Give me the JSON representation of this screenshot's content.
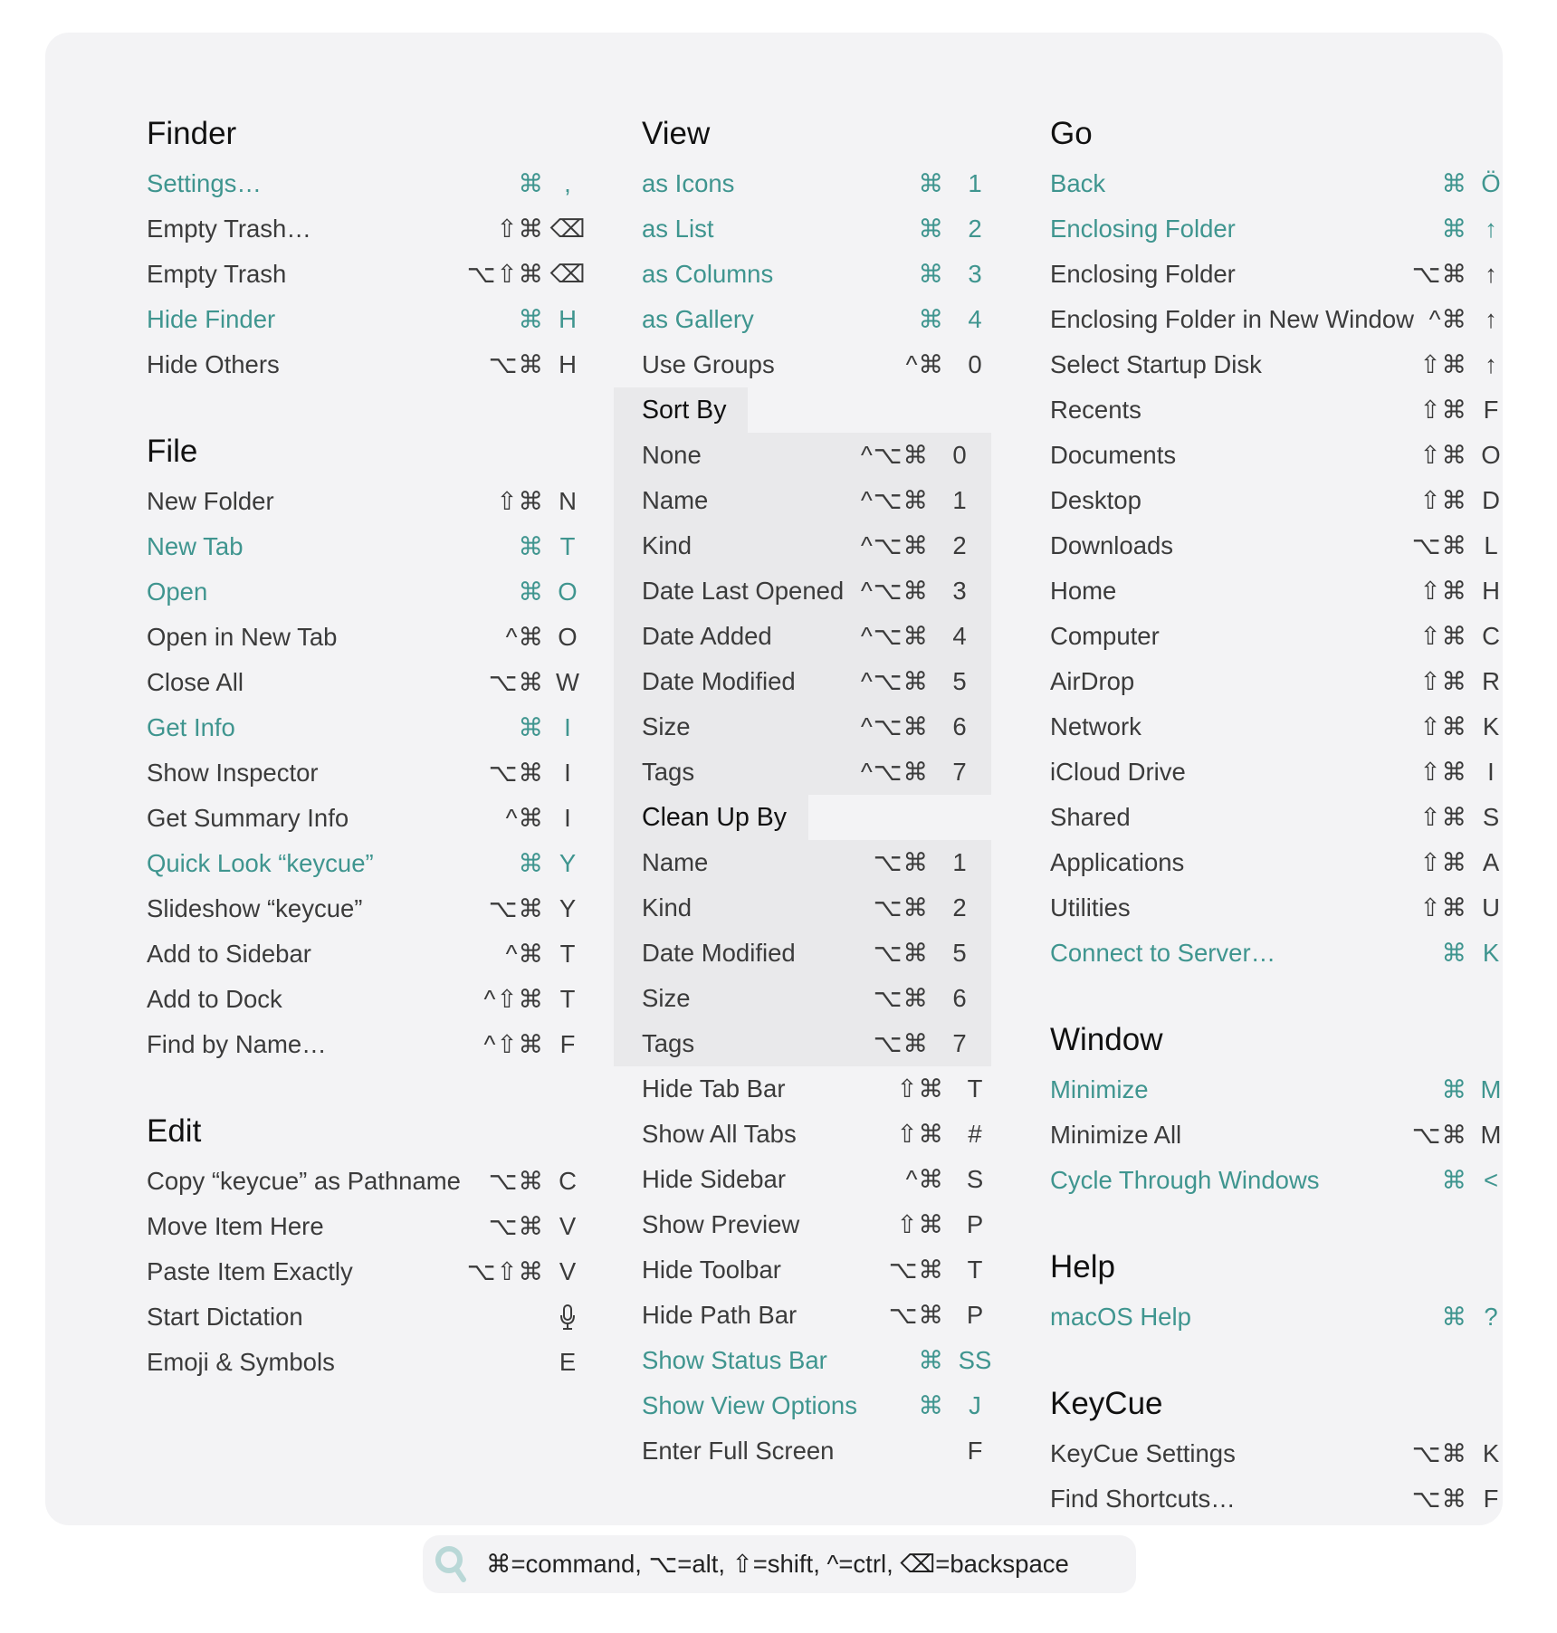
{
  "colors": {
    "accent": "#3f958f",
    "panel": "#f3f3f5",
    "group_bg": "#e9e9eb",
    "search_icon": "#b9d8d7"
  },
  "columns": [
    {
      "sections": [
        {
          "title": "Finder",
          "rows": [
            {
              "label": "Settings…",
              "mods": "⌘",
              "key": ",",
              "teal": true
            },
            {
              "label": "Empty Trash…",
              "mods": "⇧⌘",
              "key": "⌫"
            },
            {
              "label": "Empty Trash",
              "mods": "⌥⇧⌘",
              "key": "⌫"
            },
            {
              "label": "Hide Finder",
              "mods": "⌘",
              "key": "H",
              "teal": true
            },
            {
              "label": "Hide Others",
              "mods": "⌥⌘",
              "key": "H"
            }
          ]
        },
        {
          "title": "File",
          "rows": [
            {
              "label": "New Folder",
              "mods": "⇧⌘",
              "key": "N"
            },
            {
              "label": "New Tab",
              "mods": "⌘",
              "key": "T",
              "teal": true
            },
            {
              "label": "Open",
              "mods": "⌘",
              "key": "O",
              "teal": true
            },
            {
              "label": "Open in New Tab",
              "mods": "^⌘",
              "key": "O"
            },
            {
              "label": "Close All",
              "mods": "⌥⌘",
              "key": "W"
            },
            {
              "label": "Get Info",
              "mods": "⌘",
              "key": "I",
              "teal": true
            },
            {
              "label": "Show Inspector",
              "mods": "⌥⌘",
              "key": "I"
            },
            {
              "label": "Get Summary Info",
              "mods": "^⌘",
              "key": "I"
            },
            {
              "label": "Quick Look “keycue”",
              "mods": "⌘",
              "key": "Y",
              "teal": true
            },
            {
              "label": "Slideshow “keycue”",
              "mods": "⌥⌘",
              "key": "Y"
            },
            {
              "label": "Add to Sidebar",
              "mods": "^⌘",
              "key": "T"
            },
            {
              "label": "Add to Dock",
              "mods": "^⇧⌘",
              "key": "T"
            },
            {
              "label": "Find by Name…",
              "mods": "^⇧⌘",
              "key": "F"
            }
          ]
        },
        {
          "title": "Edit",
          "rows": [
            {
              "label": "Copy “keycue” as Pathname",
              "mods": "⌥⌘",
              "key": "C"
            },
            {
              "label": "Move Item Here",
              "mods": "⌥⌘",
              "key": "V"
            },
            {
              "label": "Paste Item Exactly",
              "mods": "⌥⇧⌘",
              "key": "V"
            },
            {
              "label": "Start Dictation",
              "mods": "",
              "key": "",
              "icon": "microphone-icon"
            },
            {
              "label": "Emoji & Symbols",
              "mods": "",
              "key": "E"
            }
          ]
        }
      ]
    },
    {
      "sections": [
        {
          "title": "View",
          "rows": [
            {
              "label": "as Icons",
              "mods": "⌘",
              "key": "1",
              "teal": true
            },
            {
              "label": "as List",
              "mods": "⌘",
              "key": "2",
              "teal": true
            },
            {
              "label": "as Columns",
              "mods": "⌘",
              "key": "3",
              "teal": true
            },
            {
              "label": "as Gallery",
              "mods": "⌘",
              "key": "4",
              "teal": true
            },
            {
              "label": "Use Groups",
              "mods": "^⌘",
              "key": "0"
            },
            {
              "label": "Sort By",
              "sub": true
            },
            {
              "label": "None",
              "mods": "^⌥⌘",
              "key": "0",
              "grp": true
            },
            {
              "label": "Name",
              "mods": "^⌥⌘",
              "key": "1",
              "grp": true
            },
            {
              "label": "Kind",
              "mods": "^⌥⌘",
              "key": "2",
              "grp": true
            },
            {
              "label": "Date Last Opened",
              "mods": "^⌥⌘",
              "key": "3",
              "grp": true
            },
            {
              "label": "Date Added",
              "mods": "^⌥⌘",
              "key": "4",
              "grp": true
            },
            {
              "label": "Date Modified",
              "mods": "^⌥⌘",
              "key": "5",
              "grp": true
            },
            {
              "label": "Size",
              "mods": "^⌥⌘",
              "key": "6",
              "grp": true
            },
            {
              "label": "Tags",
              "mods": "^⌥⌘",
              "key": "7",
              "grp": true
            },
            {
              "label": "Clean Up By",
              "sub": true
            },
            {
              "label": "Name",
              "mods": "⌥⌘",
              "key": "1",
              "grp": true
            },
            {
              "label": "Kind",
              "mods": "⌥⌘",
              "key": "2",
              "grp": true
            },
            {
              "label": "Date Modified",
              "mods": "⌥⌘",
              "key": "5",
              "grp": true
            },
            {
              "label": "Size",
              "mods": "⌥⌘",
              "key": "6",
              "grp": true
            },
            {
              "label": "Tags",
              "mods": "⌥⌘",
              "key": "7",
              "grp": true
            },
            {
              "label": "Hide Tab Bar",
              "mods": "⇧⌘",
              "key": "T"
            },
            {
              "label": "Show All Tabs",
              "mods": "⇧⌘",
              "key": "#"
            },
            {
              "label": "Hide Sidebar",
              "mods": "^⌘",
              "key": "S"
            },
            {
              "label": "Show Preview",
              "mods": "⇧⌘",
              "key": "P"
            },
            {
              "label": "Hide Toolbar",
              "mods": "⌥⌘",
              "key": "T"
            },
            {
              "label": "Hide Path Bar",
              "mods": "⌥⌘",
              "key": "P"
            },
            {
              "label": "Show Status Bar",
              "mods": "⌘",
              "key": "SS",
              "teal": true
            },
            {
              "label": "Show View Options",
              "mods": "⌘",
              "key": "J",
              "teal": true
            },
            {
              "label": "Enter Full Screen",
              "mods": "",
              "key": "F"
            }
          ]
        }
      ]
    },
    {
      "sections": [
        {
          "title": "Go",
          "rows": [
            {
              "label": "Back",
              "mods": "⌘",
              "key": "Ö",
              "teal": true
            },
            {
              "label": "Enclosing Folder",
              "mods": "⌘",
              "key": "↑",
              "teal": true
            },
            {
              "label": "Enclosing Folder",
              "mods": "⌥⌘",
              "key": "↑"
            },
            {
              "label": "Enclosing Folder in New Window",
              "mods": "^⌘",
              "key": "↑"
            },
            {
              "label": "Select Startup Disk",
              "mods": "⇧⌘",
              "key": "↑"
            },
            {
              "label": "Recents",
              "mods": "⇧⌘",
              "key": "F"
            },
            {
              "label": "Documents",
              "mods": "⇧⌘",
              "key": "O"
            },
            {
              "label": "Desktop",
              "mods": "⇧⌘",
              "key": "D"
            },
            {
              "label": "Downloads",
              "mods": "⌥⌘",
              "key": "L"
            },
            {
              "label": "Home",
              "mods": "⇧⌘",
              "key": "H"
            },
            {
              "label": "Computer",
              "mods": "⇧⌘",
              "key": "C"
            },
            {
              "label": "AirDrop",
              "mods": "⇧⌘",
              "key": "R"
            },
            {
              "label": "Network",
              "mods": "⇧⌘",
              "key": "K"
            },
            {
              "label": "iCloud Drive",
              "mods": "⇧⌘",
              "key": "I"
            },
            {
              "label": "Shared",
              "mods": "⇧⌘",
              "key": "S"
            },
            {
              "label": "Applications",
              "mods": "⇧⌘",
              "key": "A"
            },
            {
              "label": "Utilities",
              "mods": "⇧⌘",
              "key": "U"
            },
            {
              "label": "Connect to Server…",
              "mods": "⌘",
              "key": "K",
              "teal": true
            }
          ]
        },
        {
          "title": "Window",
          "rows": [
            {
              "label": "Minimize",
              "mods": "⌘",
              "key": "M",
              "teal": true
            },
            {
              "label": "Minimize All",
              "mods": "⌥⌘",
              "key": "M"
            },
            {
              "label": "Cycle Through Windows",
              "mods": "⌘",
              "key": "<",
              "teal": true
            }
          ]
        },
        {
          "title": "Help",
          "rows": [
            {
              "label": "macOS Help",
              "mods": "⌘",
              "key": "?",
              "teal": true
            }
          ]
        },
        {
          "title": "KeyCue",
          "rows": [
            {
              "label": "KeyCue Settings",
              "mods": "⌥⌘",
              "key": "K"
            },
            {
              "label": "Find Shortcuts…",
              "mods": "⌥⌘",
              "key": "F"
            }
          ]
        }
      ]
    }
  ],
  "footer": {
    "icon": "search-icon",
    "legend": "⌘=command, ⌥=alt, ⇧=shift, ^=ctrl, ⌫=backspace"
  }
}
